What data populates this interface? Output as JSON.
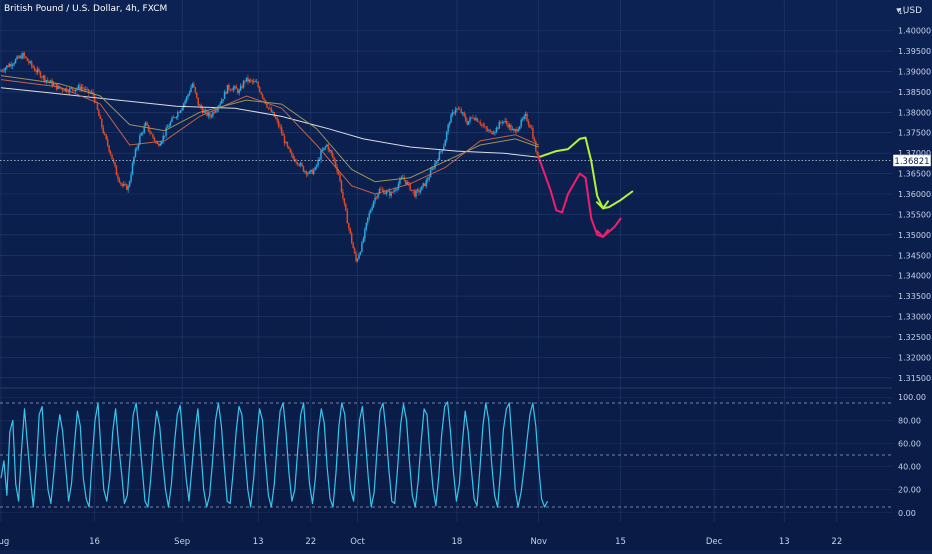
{
  "header": {
    "title": "British Pound / U.S. Dollar, 4h, FXCM",
    "currency": "USD"
  },
  "colors": {
    "background_top": "#0c2253",
    "background_bottom": "#0a1b45",
    "grid": "#2a4578",
    "candle_up": "#2aa6e0",
    "candle_down": "#e04a24",
    "ma_white": "#f1f1ee",
    "ma_red": "#d46a4e",
    "ma_olive": "#a8a060",
    "drawing_green": "#b5f23e",
    "drawing_red": "#f01f6e",
    "oscillator": "#36c6ee"
  },
  "chart_data": [
    {
      "type": "candlestick",
      "symbol": "GBPUSD",
      "timeframe": "4h",
      "y_range": [
        1.3125,
        1.4075
      ],
      "y_ticks": [
        "1.40000",
        "1.39500",
        "1.39000",
        "1.38500",
        "1.38000",
        "1.37500",
        "1.37000",
        "1.36500",
        "1.36000",
        "1.35500",
        "1.35000",
        "1.34500",
        "1.34000",
        "1.33500",
        "1.33000",
        "1.32500",
        "1.32000",
        "1.31500"
      ],
      "last_price": {
        "value": 1.36821,
        "label": "1.36821"
      },
      "x_ticks": [
        {
          "label": "Aug",
          "day": 0
        },
        {
          "label": "16",
          "day": 16
        },
        {
          "label": "Sep",
          "day": 31
        },
        {
          "label": "13",
          "day": 44
        },
        {
          "label": "22",
          "day": 53
        },
        {
          "label": "Oct",
          "day": 61
        },
        {
          "label": "18",
          "day": 78
        },
        {
          "label": "Nov",
          "day": 92
        },
        {
          "label": "15",
          "day": 106
        },
        {
          "label": "Dec",
          "day": 122
        },
        {
          "label": "13",
          "day": 134
        },
        {
          "label": "22",
          "day": 143
        }
      ],
      "price_path": [
        [
          0,
          1.39
        ],
        [
          2,
          1.392
        ],
        [
          4,
          1.394
        ],
        [
          6,
          1.3905
        ],
        [
          8,
          1.388
        ],
        [
          10,
          1.386
        ],
        [
          12,
          1.3855
        ],
        [
          14,
          1.3862
        ],
        [
          15,
          1.385
        ],
        [
          16,
          1.3845
        ],
        [
          17,
          1.379
        ],
        [
          18,
          1.374
        ],
        [
          19,
          1.37
        ],
        [
          20,
          1.365
        ],
        [
          21,
          1.362
        ],
        [
          22,
          1.3615
        ],
        [
          23,
          1.369
        ],
        [
          24,
          1.374
        ],
        [
          25,
          1.377
        ],
        [
          26,
          1.3745
        ],
        [
          27,
          1.372
        ],
        [
          28,
          1.374
        ],
        [
          29,
          1.377
        ],
        [
          30,
          1.379
        ],
        [
          31,
          1.381
        ],
        [
          32,
          1.3835
        ],
        [
          33,
          1.387
        ],
        [
          34,
          1.382
        ],
        [
          35,
          1.38
        ],
        [
          36,
          1.379
        ],
        [
          37,
          1.381
        ],
        [
          38,
          1.383
        ],
        [
          39,
          1.386
        ],
        [
          40,
          1.386
        ],
        [
          41,
          1.385
        ],
        [
          42,
          1.388
        ],
        [
          43,
          1.3875
        ],
        [
          44,
          1.387
        ],
        [
          45,
          1.384
        ],
        [
          46,
          1.381
        ],
        [
          47,
          1.379
        ],
        [
          48,
          1.376
        ],
        [
          49,
          1.372
        ],
        [
          50,
          1.369
        ],
        [
          51,
          1.368
        ],
        [
          52,
          1.366
        ],
        [
          53,
          1.365
        ],
        [
          54,
          1.366
        ],
        [
          55,
          1.37
        ],
        [
          56,
          1.372
        ],
        [
          57,
          1.369
        ],
        [
          58,
          1.365
        ],
        [
          59,
          1.357
        ],
        [
          60,
          1.35
        ],
        [
          61,
          1.3435
        ],
        [
          62,
          1.3475
        ],
        [
          63,
          1.354
        ],
        [
          64,
          1.3585
        ],
        [
          65,
          1.361
        ],
        [
          66,
          1.3605
        ],
        [
          67,
          1.36
        ],
        [
          68,
          1.362
        ],
        [
          69,
          1.364
        ],
        [
          70,
          1.362
        ],
        [
          71,
          1.36
        ],
        [
          72,
          1.361
        ],
        [
          73,
          1.363
        ],
        [
          74,
          1.366
        ],
        [
          75,
          1.369
        ],
        [
          76,
          1.372
        ],
        [
          77,
          1.378
        ],
        [
          78,
          1.381
        ],
        [
          79,
          1.38
        ],
        [
          80,
          1.3775
        ],
        [
          81,
          1.379
        ],
        [
          82,
          1.378
        ],
        [
          83,
          1.376
        ],
        [
          84,
          1.375
        ],
        [
          85,
          1.376
        ],
        [
          86,
          1.378
        ],
        [
          87,
          1.377
        ],
        [
          88,
          1.375
        ],
        [
          89,
          1.377
        ],
        [
          90,
          1.379
        ],
        [
          91,
          1.376
        ],
        [
          92,
          1.369
        ]
      ],
      "moving_averages": [
        {
          "color_key": "ma_white",
          "points": [
            [
              0,
              1.386
            ],
            [
              10,
              1.3845
            ],
            [
              20,
              1.383
            ],
            [
              30,
              1.3815
            ],
            [
              40,
              1.381
            ],
            [
              48,
              1.379
            ],
            [
              56,
              1.376
            ],
            [
              62,
              1.3735
            ],
            [
              70,
              1.3715
            ],
            [
              78,
              1.3705
            ],
            [
              86,
              1.37
            ],
            [
              92,
              1.369
            ]
          ]
        },
        {
          "color_key": "ma_red",
          "points": [
            [
              0,
              1.388
            ],
            [
              10,
              1.3862
            ],
            [
              17,
              1.382
            ],
            [
              22,
              1.372
            ],
            [
              28,
              1.373
            ],
            [
              34,
              1.379
            ],
            [
              42,
              1.384
            ],
            [
              48,
              1.381
            ],
            [
              54,
              1.372
            ],
            [
              60,
              1.362
            ],
            [
              64,
              1.36
            ],
            [
              70,
              1.3625
            ],
            [
              76,
              1.3665
            ],
            [
              82,
              1.373
            ],
            [
              88,
              1.3745
            ],
            [
              92,
              1.372
            ]
          ]
        },
        {
          "color_key": "ma_olive",
          "points": [
            [
              0,
              1.389
            ],
            [
              10,
              1.387
            ],
            [
              17,
              1.384
            ],
            [
              22,
              1.377
            ],
            [
              28,
              1.3755
            ],
            [
              34,
              1.38
            ],
            [
              42,
              1.383
            ],
            [
              48,
              1.382
            ],
            [
              54,
              1.376
            ],
            [
              60,
              1.366
            ],
            [
              64,
              1.363
            ],
            [
              70,
              1.364
            ],
            [
              76,
              1.368
            ],
            [
              82,
              1.372
            ],
            [
              88,
              1.3735
            ],
            [
              92,
              1.3715
            ]
          ]
        }
      ],
      "drawings": [
        {
          "color_key": "drawing_green",
          "points": [
            [
              92,
              1.369
            ],
            [
              95,
              1.3705
            ],
            [
              97,
              1.371
            ],
            [
              99,
              1.3735
            ],
            [
              100,
              1.3738
            ],
            [
              101,
              1.368
            ],
            [
              102,
              1.3595
            ],
            [
              103,
              1.3565
            ],
            [
              104,
              1.3568
            ],
            [
              106,
              1.3585
            ],
            [
              108,
              1.3606
            ]
          ]
        },
        {
          "color_key": "drawing_red",
          "points": [
            [
              92,
              1.369
            ],
            [
              94,
              1.361
            ],
            [
              95,
              1.356
            ],
            [
              96,
              1.3555
            ],
            [
              97,
              1.36
            ],
            [
              99,
              1.365
            ],
            [
              100,
              1.364
            ],
            [
              101,
              1.354
            ],
            [
              102,
              1.35
            ],
            [
              103,
              1.3495
            ],
            [
              105,
              1.352
            ],
            [
              106,
              1.354
            ]
          ]
        }
      ]
    },
    {
      "type": "line",
      "name": "oscillator",
      "y_range": [
        -8,
        108
      ],
      "y_ticks": [
        "100.00",
        "80.00",
        "60.00",
        "40.00",
        "20.00",
        "0.00"
      ],
      "levels": [
        95,
        50,
        5
      ],
      "x_day_range": [
        0,
        93.5
      ],
      "values": [
        30,
        45,
        15,
        70,
        80,
        25,
        10,
        55,
        90,
        60,
        30,
        5,
        40,
        85,
        92,
        50,
        20,
        8,
        35,
        65,
        85,
        70,
        40,
        10,
        25,
        60,
        88,
        75,
        30,
        12,
        5,
        45,
        80,
        95,
        55,
        20,
        10,
        30,
        70,
        90,
        60,
        35,
        8,
        15,
        50,
        85,
        95,
        70,
        40,
        10,
        5,
        30,
        65,
        88,
        75,
        45,
        20,
        5,
        25,
        60,
        85,
        93,
        60,
        30,
        10,
        40,
        70,
        90,
        55,
        20,
        5,
        15,
        45,
        80,
        95,
        75,
        40,
        10,
        8,
        35,
        70,
        92,
        85,
        50,
        20,
        5,
        30,
        65,
        90,
        80,
        45,
        15,
        5,
        25,
        60,
        88,
        95,
        70,
        35,
        10,
        20,
        55,
        85,
        95,
        60,
        25,
        8,
        30,
        70,
        90,
        78,
        40,
        12,
        5,
        35,
        75,
        95,
        85,
        50,
        20,
        10,
        45,
        80,
        92,
        65,
        30,
        5,
        18,
        55,
        88,
        95,
        72,
        38,
        10,
        8,
        40,
        76,
        94,
        80,
        45,
        15,
        5,
        28,
        62,
        90,
        85,
        50,
        22,
        6,
        32,
        68,
        92,
        96,
        70,
        35,
        10,
        25,
        60,
        88,
        70,
        40,
        12,
        6,
        38,
        75,
        95,
        80,
        42,
        15,
        5,
        35,
        72,
        90,
        95,
        60,
        20,
        5,
        18,
        38,
        62,
        85,
        95,
        75,
        40,
        12,
        5,
        10
      ]
    }
  ]
}
